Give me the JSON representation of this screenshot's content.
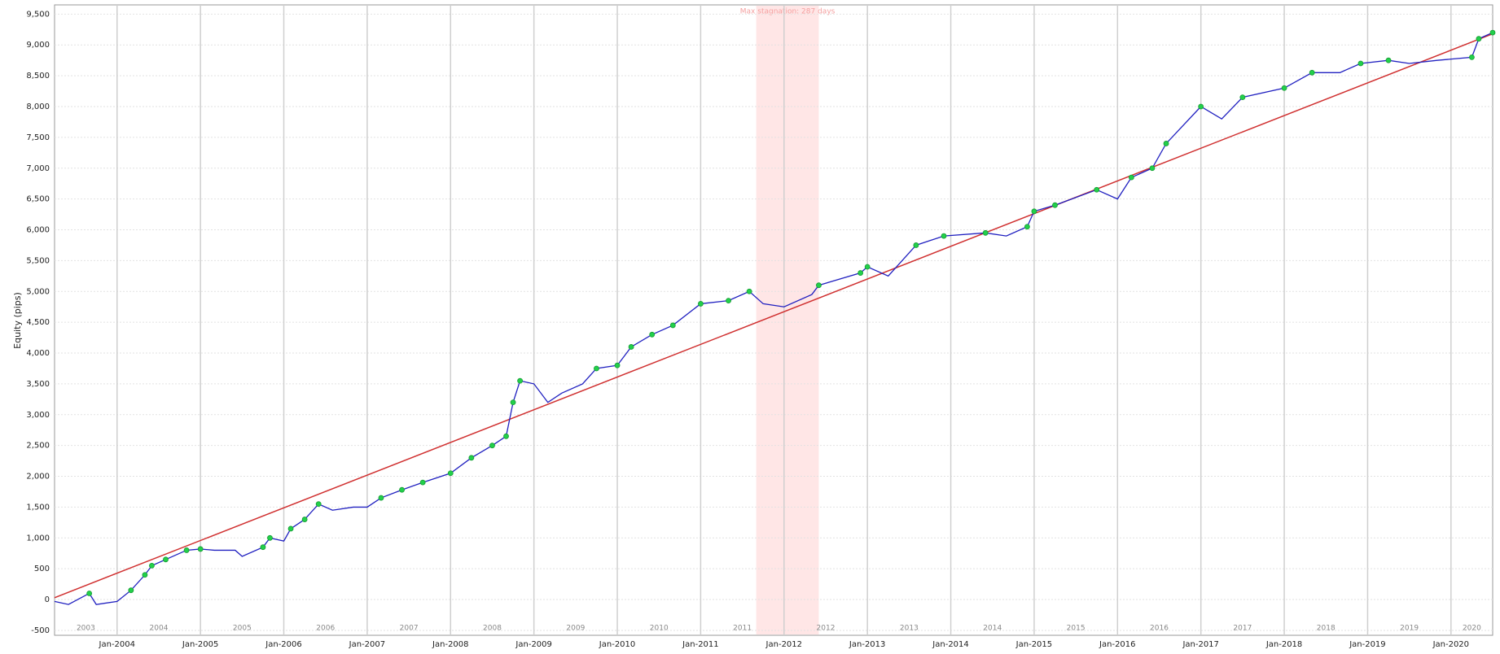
{
  "chart_data": {
    "type": "line",
    "ylabel": "Equity (pips)",
    "xlim": [
      "Apr-2003",
      "Jul-2020"
    ],
    "ylim": [
      -580,
      9650
    ],
    "xticks": [
      "Jan-2004",
      "Jan-2005",
      "Jan-2006",
      "Jan-2007",
      "Jan-2008",
      "Jan-2009",
      "Jan-2010",
      "Jan-2011",
      "Jan-2012",
      "Jan-2013",
      "Jan-2014",
      "Jan-2015",
      "Jan-2016",
      "Jan-2017",
      "Jan-2018",
      "Jan-2019",
      "Jan-2020"
    ],
    "year_labels": [
      "2003",
      "2004",
      "2005",
      "2006",
      "2007",
      "2008",
      "2009",
      "2010",
      "2011",
      "2012",
      "2013",
      "2014",
      "2015",
      "2016",
      "2017",
      "2018",
      "2019",
      "2020"
    ],
    "yticks": [
      {
        "value": -500,
        "label": "-500"
      },
      0,
      500,
      {
        "value": 1000,
        "label": "1,000"
      },
      {
        "value": 1500,
        "label": "1,500"
      },
      {
        "value": 2000,
        "label": "2,000"
      },
      {
        "value": 2500,
        "label": "2,500"
      },
      {
        "value": 3000,
        "label": "3,000"
      },
      {
        "value": 3500,
        "label": "3,500"
      },
      {
        "value": 4000,
        "label": "4,000"
      },
      {
        "value": 4500,
        "label": "4,500"
      },
      {
        "value": 5000,
        "label": "5,000"
      },
      {
        "value": 5500,
        "label": "5,500"
      },
      {
        "value": 6000,
        "label": "6,000"
      },
      {
        "value": 6500,
        "label": "6,500"
      },
      {
        "value": 7000,
        "label": "7,000"
      },
      {
        "value": 7500,
        "label": "7,500"
      },
      {
        "value": 8000,
        "label": "8,000"
      },
      {
        "value": 8500,
        "label": "8,500"
      },
      {
        "value": 9000,
        "label": "9,000"
      },
      {
        "value": 9500,
        "label": "9,500"
      }
    ],
    "grid": true,
    "highlight_color": "#22d04a",
    "x": [
      "Apr-2003",
      "Jun-2003",
      "Sep-2003",
      "Oct-2003",
      "Jan-2004",
      "Mar-2004",
      "May-2004",
      "Jun-2004",
      "Aug-2004",
      "Nov-2004",
      "Jan-2005",
      "Mar-2005",
      "Jun-2005",
      "Jul-2005",
      "Oct-2005",
      "Nov-2005",
      "Jan-2006",
      "Feb-2006",
      "Apr-2006",
      "Jun-2006",
      "Aug-2006",
      "Nov-2006",
      "Jan-2007",
      "Mar-2007",
      "Jun-2007",
      "Sep-2007",
      "Jan-2008",
      "Apr-2008",
      "Jul-2008",
      "Sep-2008",
      "Oct-2008",
      "Nov-2008",
      "Jan-2009",
      "Mar-2009",
      "May-2009",
      "Aug-2009",
      "Oct-2009",
      "Jan-2010",
      "Mar-2010",
      "Jun-2010",
      "Sep-2010",
      "Jan-2011",
      "May-2011",
      "Aug-2011",
      "Oct-2011",
      "Jan-2012",
      "May-2012",
      "Jun-2012",
      "Dec-2012",
      "Jan-2013",
      "Apr-2013",
      "Aug-2013",
      "Dec-2013",
      "Jun-2014",
      "Sep-2014",
      "Dec-2014",
      "Jan-2015",
      "Apr-2015",
      "Oct-2015",
      "Jan-2016",
      "Mar-2016",
      "Jun-2016",
      "Aug-2016",
      "Jan-2017",
      "Apr-2017",
      "Jul-2017",
      "Jan-2018",
      "May-2018",
      "Sep-2018",
      "Dec-2018",
      "Apr-2019",
      "Jul-2019",
      "Nov-2019",
      "Apr-2020",
      "May-2020",
      "Jul-2020"
    ],
    "series": [
      {
        "color": "#2020c0",
        "values": [
          -30,
          -80,
          100,
          -80,
          -30,
          150,
          400,
          550,
          650,
          800,
          820,
          800,
          800,
          700,
          850,
          1000,
          950,
          1150,
          1300,
          1550,
          1450,
          1500,
          1500,
          1650,
          1780,
          1900,
          2050,
          2300,
          2500,
          2650,
          3200,
          3550,
          3500,
          3200,
          3350,
          3500,
          3750,
          3800,
          4100,
          4300,
          4450,
          4800,
          4850,
          5000,
          4800,
          4750,
          4950,
          5100,
          5300,
          5400,
          5250,
          5750,
          5900,
          5950,
          5900,
          6050,
          6300,
          6400,
          6650,
          6500,
          6850,
          7000,
          7400,
          8000,
          7800,
          8150,
          8300,
          8550,
          8550,
          8700,
          8750,
          8700,
          8750,
          8800,
          9100,
          9200
        ]
      }
    ],
    "trend_line": {
      "color": "#d03030",
      "x": [
        "Apr-2003",
        "Jul-2020"
      ],
      "values": [
        30,
        9180
      ]
    },
    "annotations": [
      {
        "text": "Max stagnation: 287 days",
        "x_start": "Sep-2011",
        "x_end": "Jun-2012",
        "color": "#ffe6e6"
      }
    ]
  }
}
